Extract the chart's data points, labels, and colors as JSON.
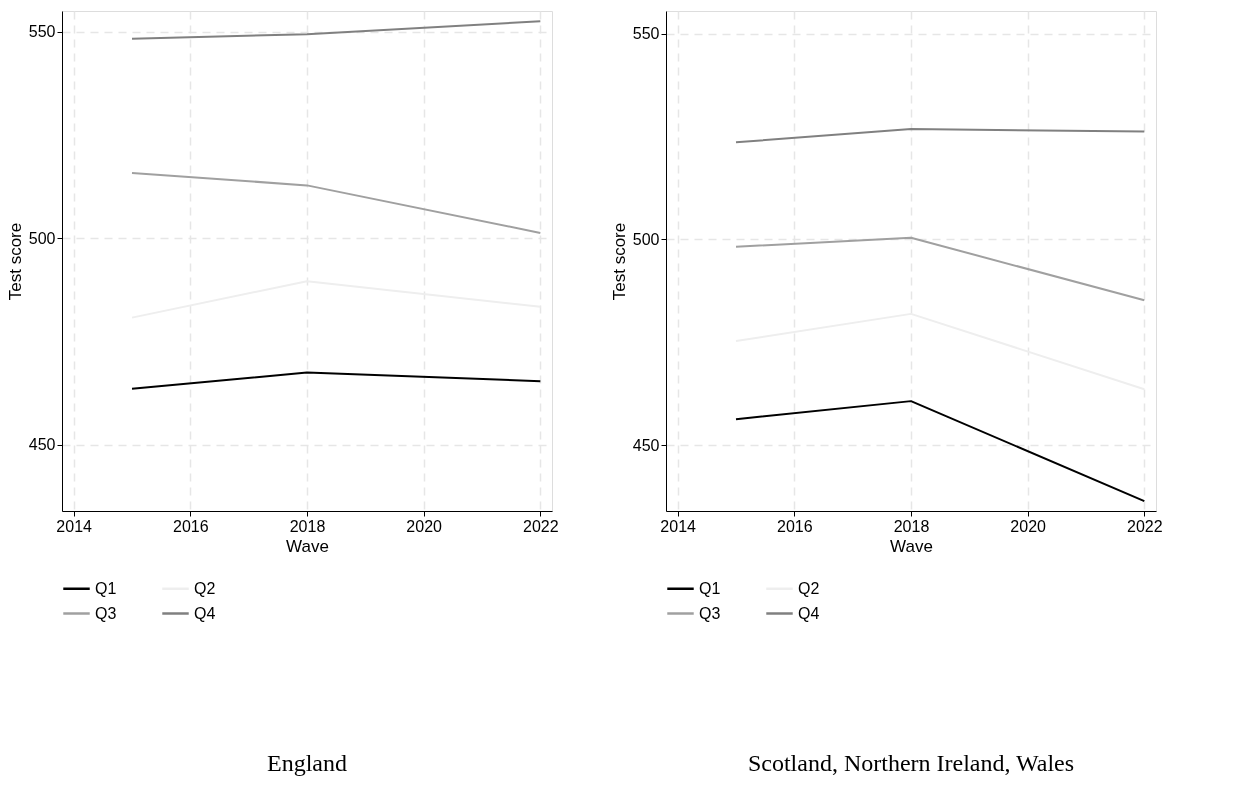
{
  "chart_data": [
    {
      "type": "line",
      "title": "England",
      "xlabel": "Wave",
      "ylabel": "Test score",
      "x": [
        2015,
        2018,
        2022
      ],
      "series": [
        {
          "name": "Q1",
          "color": "#000000",
          "values": [
            463.6,
            467.5,
            465.4
          ]
        },
        {
          "name": "Q2",
          "color": "#eeeeee",
          "values": [
            480.8,
            489.6,
            483.4
          ]
        },
        {
          "name": "Q3",
          "color": "#a0a0a0",
          "values": [
            515.8,
            512.8,
            501.3
          ]
        },
        {
          "name": "Q4",
          "color": "#808080",
          "values": [
            548.3,
            549.4,
            552.5
          ]
        }
      ],
      "xlim": [
        2013.8,
        2022.2
      ],
      "ylim": [
        434,
        555
      ],
      "xticks": [
        2014,
        2016,
        2018,
        2020,
        2022
      ],
      "yticks": [
        450,
        500,
        550
      ],
      "grid": true,
      "legend": "bottom",
      "line_style": "solid"
    },
    {
      "type": "line",
      "title": "Scotland, Northern Ireland, Wales",
      "xlabel": "Wave",
      "ylabel": "Test score",
      "x": [
        2015,
        2018,
        2022
      ],
      "series": [
        {
          "name": "Q1",
          "color": "#000000",
          "values": [
            456.3,
            460.7,
            436.4
          ]
        },
        {
          "name": "Q2",
          "color": "#eeeeee",
          "values": [
            475.3,
            481.9,
            463.6
          ]
        },
        {
          "name": "Q3",
          "color": "#a0a0a0",
          "values": [
            498.2,
            500.4,
            485.2
          ]
        },
        {
          "name": "Q4",
          "color": "#808080",
          "values": [
            523.6,
            526.8,
            526.2
          ]
        }
      ],
      "xlim": [
        2013.8,
        2022.2
      ],
      "ylim": [
        434,
        555.5
      ],
      "xticks": [
        2014,
        2016,
        2018,
        2020,
        2022
      ],
      "yticks": [
        450,
        500,
        550
      ],
      "grid": true,
      "legend": "bottom",
      "line_style": "solid"
    }
  ]
}
